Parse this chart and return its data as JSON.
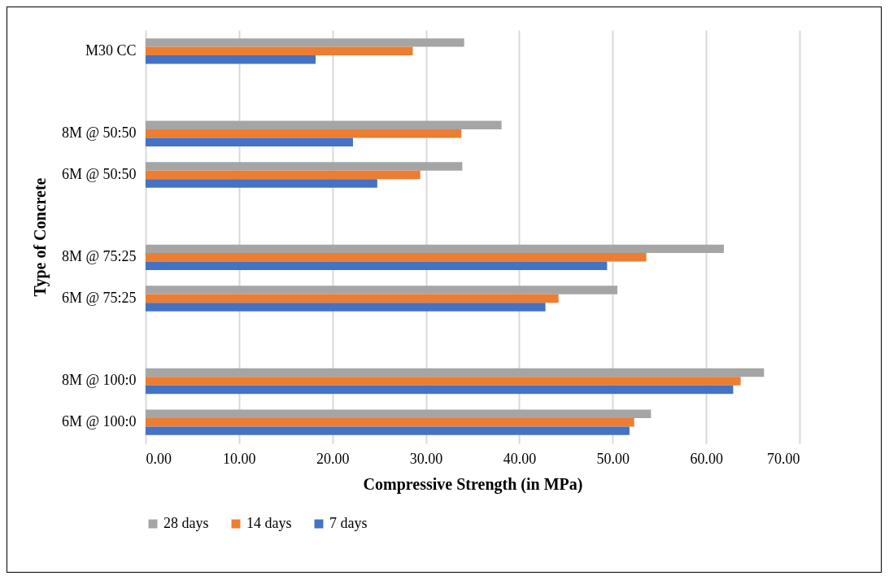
{
  "chart_data": {
    "type": "bar",
    "orientation": "horizontal",
    "xlabel": "Compressive Strength (in MPa)",
    "ylabel": "Type of Concrete",
    "categories": [
      "M30 CC",
      null,
      "8M @ 50:50",
      "6M @ 50:50",
      null,
      "8M @ 75:25",
      "6M @ 75:25",
      null,
      "8M @ 100:0",
      "6M @ 100:0"
    ],
    "series": [
      {
        "name": "28 days",
        "color": "#a5a5a5",
        "values": [
          34.1,
          null,
          38.1,
          33.9,
          null,
          61.9,
          50.5,
          null,
          66.2,
          54.1
        ]
      },
      {
        "name": "14 days",
        "color": "#ed7d31",
        "values": [
          28.6,
          null,
          33.8,
          29.4,
          null,
          53.6,
          44.2,
          null,
          63.7,
          52.3
        ]
      },
      {
        "name": "7 days",
        "color": "#4472c4",
        "values": [
          18.2,
          null,
          22.2,
          24.8,
          null,
          49.4,
          42.8,
          null,
          62.9,
          51.8
        ]
      }
    ],
    "xlim": [
      0,
      70
    ],
    "xticks": [
      {
        "value": 0,
        "label": "0.00"
      },
      {
        "value": 10,
        "label": "10.00"
      },
      {
        "value": 20,
        "label": "20.00"
      },
      {
        "value": 30,
        "label": "30.00"
      },
      {
        "value": 40,
        "label": "40.00"
      },
      {
        "value": 50,
        "label": "50.00"
      },
      {
        "value": 60,
        "label": "60.00"
      },
      {
        "value": 70,
        "label": "70.00"
      }
    ],
    "grid": "x",
    "legend": "bottom"
  }
}
